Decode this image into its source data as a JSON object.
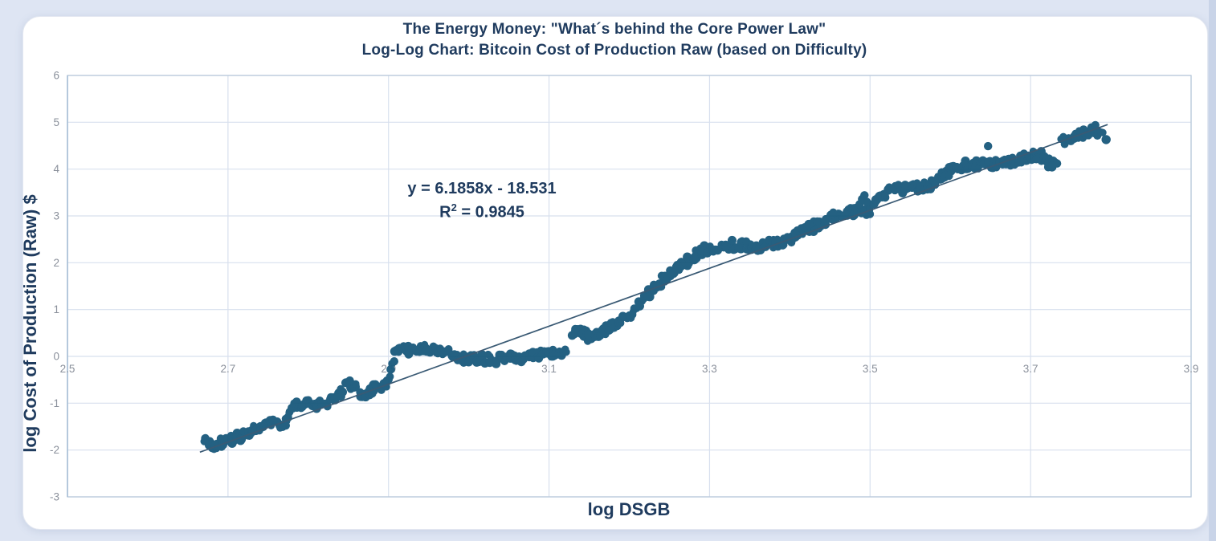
{
  "page": {
    "background_color": "#dee5f3",
    "card_color": "#ffffff",
    "accent_navy": "#1f3b5e"
  },
  "title": {
    "line1": "The Energy Money: \"What´s behind the Core Power Law\"",
    "line2": "Log-Log Chart: Bitcoin Cost of Production Raw (based on Difficulty)"
  },
  "annotation": {
    "equation": "y = 6.1858x - 18.531",
    "r2_base": "R",
    "r2_exponent": "2",
    "r2_value": " = 0.9845"
  },
  "axes": {
    "x_label": "log DSGB",
    "y_label": "log Cost of Production (Raw) $",
    "x_ticks": [
      "2.5",
      "2.7",
      "2.9",
      "3.1",
      "3.3",
      "3.5",
      "3.7",
      "3.9"
    ],
    "y_ticks": [
      "6",
      "5",
      "4",
      "3",
      "2",
      "1",
      "0",
      "-1",
      "-2",
      "-3"
    ],
    "tick_color": "#8a909b",
    "grid_color": "#d8e0ee",
    "border_color": "#b9c9db"
  },
  "chart_data": {
    "type": "scatter",
    "title": "The Energy Money: \"What´s behind the Core Power Law\" — Log-Log Chart: Bitcoin Cost of Production Raw (based on Difficulty)",
    "xlabel": "log DSGB",
    "ylabel": "log Cost of Production (Raw) $",
    "xlim": [
      2.5,
      3.9
    ],
    "ylim": [
      -3,
      6
    ],
    "x_tick_values": [
      2.5,
      2.7,
      2.9,
      3.1,
      3.3,
      3.5,
      3.7,
      3.9
    ],
    "y_tick_values": [
      6,
      5,
      4,
      3,
      2,
      1,
      0,
      -1,
      -2,
      -3
    ],
    "grid": true,
    "legend": "none",
    "point_color": "#1d5c7e",
    "trendline": {
      "slope": 6.1858,
      "intercept": -18.531,
      "x_start": 2.665,
      "x_end": 3.796,
      "color": "#3a5a74",
      "equation": "y = 6.1858x - 18.531",
      "r_squared": 0.9845
    },
    "band_half_width": 0.1,
    "band_x_step": 0.0035,
    "gaps": [
      [
        3.1215,
        3.1295
      ],
      [
        3.7315,
        3.7365
      ]
    ],
    "band_waypoints": [
      [
        2.672,
        -1.82
      ],
      [
        2.68,
        -1.9
      ],
      [
        2.69,
        -1.86
      ],
      [
        2.7,
        -1.8
      ],
      [
        2.71,
        -1.74
      ],
      [
        2.718,
        -1.7
      ],
      [
        2.728,
        -1.6
      ],
      [
        2.737,
        -1.54
      ],
      [
        2.748,
        -1.5
      ],
      [
        2.757,
        -1.38
      ],
      [
        2.765,
        -1.52
      ],
      [
        2.772,
        -1.45
      ],
      [
        2.778,
        -1.12
      ],
      [
        2.788,
        -1.06
      ],
      [
        2.798,
        -1.02
      ],
      [
        2.808,
        -1.08
      ],
      [
        2.818,
        -1.02
      ],
      [
        2.828,
        -0.97
      ],
      [
        2.838,
        -0.8
      ],
      [
        2.848,
        -0.62
      ],
      [
        2.858,
        -0.6
      ],
      [
        2.866,
        -0.83
      ],
      [
        2.874,
        -0.75
      ],
      [
        2.882,
        -0.65
      ],
      [
        2.892,
        -0.62
      ],
      [
        2.9,
        -0.55
      ],
      [
        2.904,
        -0.3
      ],
      [
        2.908,
        0.05
      ],
      [
        2.915,
        0.12
      ],
      [
        2.925,
        0.14
      ],
      [
        2.935,
        0.12
      ],
      [
        2.945,
        0.16
      ],
      [
        2.955,
        0.14
      ],
      [
        2.962,
        0.16
      ],
      [
        2.97,
        0.1
      ],
      [
        2.98,
        -0.02
      ],
      [
        2.99,
        -0.06
      ],
      [
        3.0,
        -0.04
      ],
      [
        3.01,
        -0.07
      ],
      [
        3.02,
        -0.04
      ],
      [
        3.03,
        -0.07
      ],
      [
        3.04,
        -0.05
      ],
      [
        3.05,
        -0.04
      ],
      [
        3.06,
        -0.05
      ],
      [
        3.07,
        -0.01
      ],
      [
        3.08,
        0.02
      ],
      [
        3.09,
        0.05
      ],
      [
        3.1,
        0.04
      ],
      [
        3.11,
        0.07
      ],
      [
        3.121,
        0.1
      ],
      [
        3.13,
        0.55
      ],
      [
        3.138,
        0.5
      ],
      [
        3.148,
        0.42
      ],
      [
        3.158,
        0.45
      ],
      [
        3.168,
        0.52
      ],
      [
        3.178,
        0.62
      ],
      [
        3.188,
        0.74
      ],
      [
        3.198,
        0.88
      ],
      [
        3.208,
        1.02
      ],
      [
        3.218,
        1.22
      ],
      [
        3.228,
        1.42
      ],
      [
        3.238,
        1.56
      ],
      [
        3.248,
        1.7
      ],
      [
        3.258,
        1.85
      ],
      [
        3.268,
        1.97
      ],
      [
        3.278,
        2.1
      ],
      [
        3.288,
        2.22
      ],
      [
        3.298,
        2.3
      ],
      [
        3.308,
        2.34
      ],
      [
        3.318,
        2.36
      ],
      [
        3.328,
        2.38
      ],
      [
        3.338,
        2.39
      ],
      [
        3.348,
        2.37
      ],
      [
        3.358,
        2.35
      ],
      [
        3.368,
        2.37
      ],
      [
        3.378,
        2.41
      ],
      [
        3.388,
        2.44
      ],
      [
        3.398,
        2.5
      ],
      [
        3.408,
        2.62
      ],
      [
        3.418,
        2.68
      ],
      [
        3.428,
        2.76
      ],
      [
        3.438,
        2.82
      ],
      [
        3.448,
        2.92
      ],
      [
        3.458,
        3.0
      ],
      [
        3.468,
        3.05
      ],
      [
        3.478,
        3.08
      ],
      [
        3.488,
        3.12
      ],
      [
        3.495,
        3.08
      ],
      [
        3.5,
        3.06
      ],
      [
        3.506,
        3.3
      ],
      [
        3.512,
        3.42
      ],
      [
        3.52,
        3.5
      ],
      [
        3.53,
        3.55
      ],
      [
        3.54,
        3.58
      ],
      [
        3.55,
        3.6
      ],
      [
        3.56,
        3.62
      ],
      [
        3.57,
        3.64
      ],
      [
        3.58,
        3.7
      ],
      [
        3.59,
        3.85
      ],
      [
        3.6,
        4.0
      ],
      [
        3.608,
        4.06
      ],
      [
        3.618,
        4.08
      ],
      [
        3.628,
        4.1
      ],
      [
        3.638,
        4.08
      ],
      [
        3.648,
        4.1
      ],
      [
        3.658,
        4.12
      ],
      [
        3.668,
        4.14
      ],
      [
        3.678,
        4.17
      ],
      [
        3.688,
        4.22
      ],
      [
        3.698,
        4.27
      ],
      [
        3.708,
        4.3
      ],
      [
        3.716,
        4.25
      ],
      [
        3.724,
        4.12
      ],
      [
        3.731,
        4.18
      ],
      [
        3.737,
        4.55
      ],
      [
        3.744,
        4.6
      ],
      [
        3.752,
        4.67
      ],
      [
        3.76,
        4.72
      ],
      [
        3.768,
        4.77
      ],
      [
        3.776,
        4.82
      ],
      [
        3.782,
        4.85
      ],
      [
        3.788,
        4.72
      ],
      [
        3.794,
        4.66
      ]
    ],
    "outlier_points": [
      [
        3.647,
        4.49
      ],
      [
        3.487,
        3.25
      ],
      [
        3.49,
        3.36
      ],
      [
        3.493,
        3.44
      ],
      [
        3.496,
        3.3
      ],
      [
        3.722,
        4.04
      ],
      [
        3.727,
        4.08
      ],
      [
        3.733,
        4.12
      ]
    ]
  }
}
